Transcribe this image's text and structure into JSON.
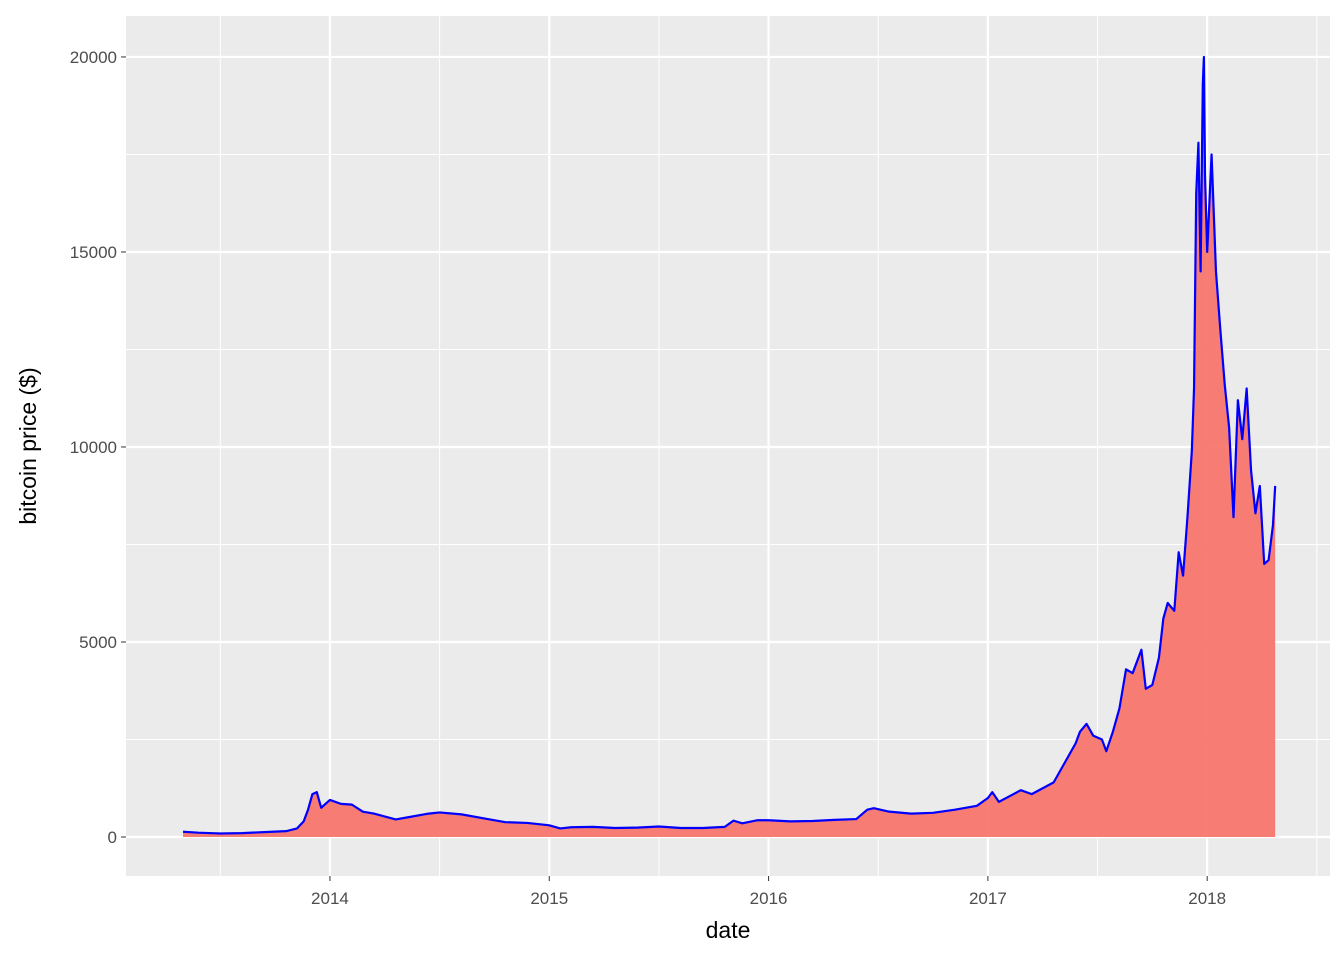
{
  "chart_data": {
    "type": "area",
    "x_label": "date",
    "y_label": "bitcoin price ($)",
    "fill_color": "#F8766D",
    "line_color": "#0000FF",
    "x": [
      2013.33,
      2013.4,
      2013.5,
      2013.6,
      2013.7,
      2013.8,
      2013.85,
      2013.88,
      2013.9,
      2013.92,
      2013.94,
      2013.96,
      2013.98,
      2014.0,
      2014.05,
      2014.1,
      2014.15,
      2014.2,
      2014.3,
      2014.35,
      2014.45,
      2014.5,
      2014.6,
      2014.7,
      2014.8,
      2014.9,
      2015.0,
      2015.05,
      2015.1,
      2015.2,
      2015.3,
      2015.4,
      2015.5,
      2015.6,
      2015.7,
      2015.8,
      2015.84,
      2015.88,
      2015.95,
      2016.0,
      2016.1,
      2016.2,
      2016.3,
      2016.4,
      2016.45,
      2016.48,
      2016.55,
      2016.65,
      2016.75,
      2016.85,
      2016.95,
      2017.0,
      2017.02,
      2017.05,
      2017.1,
      2017.15,
      2017.2,
      2017.25,
      2017.3,
      2017.35,
      2017.4,
      2017.42,
      2017.45,
      2017.48,
      2017.52,
      2017.54,
      2017.57,
      2017.6,
      2017.63,
      2017.66,
      2017.7,
      2017.72,
      2017.75,
      2017.78,
      2017.8,
      2017.82,
      2017.85,
      2017.87,
      2017.89,
      2017.91,
      2017.93,
      2017.94,
      2017.95,
      2017.96,
      2017.97,
      2017.98,
      2017.985,
      2017.99,
      2018.0,
      2018.02,
      2018.04,
      2018.06,
      2018.08,
      2018.1,
      2018.12,
      2018.14,
      2018.16,
      2018.18,
      2018.2,
      2018.22,
      2018.24,
      2018.26,
      2018.28,
      2018.3,
      2018.31
    ],
    "values": [
      135,
      110,
      90,
      100,
      125,
      150,
      220,
      400,
      700,
      1100,
      1150,
      750,
      850,
      950,
      850,
      830,
      650,
      600,
      450,
      500,
      600,
      630,
      580,
      480,
      380,
      360,
      300,
      220,
      250,
      260,
      230,
      240,
      270,
      230,
      230,
      260,
      420,
      350,
      430,
      430,
      400,
      410,
      440,
      460,
      700,
      740,
      650,
      600,
      620,
      700,
      800,
      1000,
      1150,
      900,
      1050,
      1200,
      1100,
      1250,
      1400,
      1900,
      2400,
      2700,
      2900,
      2600,
      2500,
      2200,
      2700,
      3300,
      4300,
      4200,
      4800,
      3800,
      3900,
      4600,
      5600,
      6000,
      5800,
      7300,
      6700,
      8200,
      9900,
      11500,
      16500,
      17800,
      14500,
      19300,
      20000,
      17000,
      15000,
      17500,
      14500,
      13000,
      11600,
      10500,
      8200,
      11200,
      10200,
      11500,
      9400,
      8300,
      9000,
      7000,
      7100,
      8000,
      9000
    ],
    "xlim": [
      2013.07,
      2018.56
    ],
    "xticks": [
      2014,
      2015,
      2016,
      2017,
      2018
    ],
    "ylim": [
      -1000,
      21050
    ],
    "yticks": [
      0,
      5000,
      10000,
      15000,
      20000
    ],
    "grid": true
  }
}
